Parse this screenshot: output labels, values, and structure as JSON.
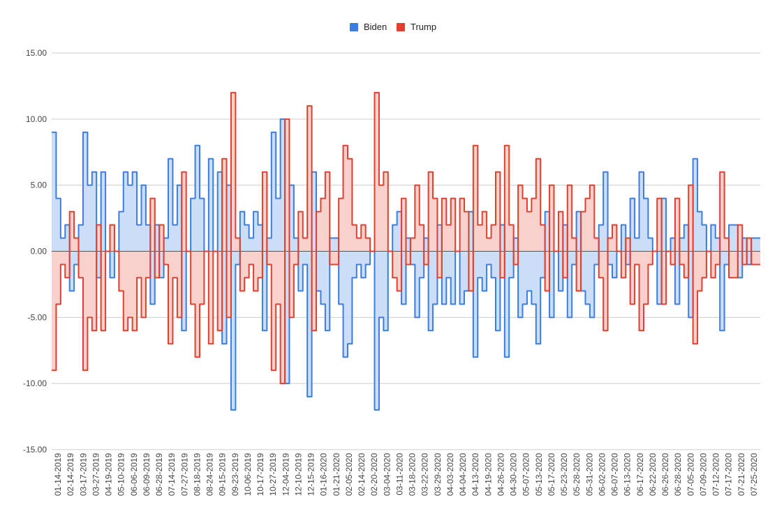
{
  "chart_data": {
    "type": "area",
    "title": "",
    "xlabel": "",
    "ylabel": "",
    "ylim": [
      -15,
      15
    ],
    "y_ticks": [
      "15.00",
      "10.00",
      "5.00",
      "0.00",
      "-5.00",
      "-10.00",
      "-15.00"
    ],
    "y_tick_values": [
      15,
      10,
      5,
      0,
      -5,
      -10,
      -15
    ],
    "grid": true,
    "legend_position": "top",
    "legend": [
      "Biden",
      "Trump"
    ],
    "colors": {
      "biden_line": "#3b7ee0",
      "biden_fill": "#c6d9f6",
      "trump_line": "#e0402f",
      "trump_fill": "#f7cbc6",
      "grid": "#cccccc",
      "zero_line": "#555555"
    },
    "x_tick_labels": [
      "01-14-2019",
      "02-14-2019",
      "03-17-2019",
      "03-27-2019",
      "04-19-2019",
      "05-10-2019",
      "06-06-2019",
      "06-09-2019",
      "06-28-2019",
      "07-14-2019",
      "07-27-2019",
      "08-18-2019",
      "08-24-2019",
      "09-15-2019",
      "09-23-2019",
      "10-06-2019",
      "10-17-2019",
      "10-27-2019",
      "12-04-2019",
      "12-10-2019",
      "12-15-2019",
      "01-16-2020",
      "01-21-2020",
      "02-05-2020",
      "02-14-2020",
      "02-20-2020",
      "03-04-2020",
      "03-11-2020",
      "03-18-2020",
      "03-22-2020",
      "03-29-2020",
      "04-03-2020",
      "04-04-2020",
      "04-13-2020",
      "04-19-2020",
      "04-26-2020",
      "04-30-2020",
      "05-07-2020",
      "05-13-2020",
      "05-17-2020",
      "05-23-2020",
      "05-28-2020",
      "05-31-2020",
      "06-02-2020",
      "06-07-2020",
      "06-13-2020",
      "06-17-2020",
      "06-22-2020",
      "06-26-2020",
      "06-28-2020",
      "07-05-2020",
      "07-09-2020",
      "07-12-2020",
      "07-17-2020",
      "07-21-2020",
      "07-25-2020"
    ],
    "series": [
      {
        "name": "Biden",
        "values": [
          9,
          4,
          1,
          2,
          -3,
          -1,
          2,
          9,
          5,
          6,
          -2,
          6,
          0,
          -2,
          0,
          3,
          6,
          5,
          6,
          2,
          5,
          2,
          -4,
          2,
          -2,
          1,
          7,
          2,
          5,
          -6,
          0,
          4,
          8,
          4,
          0,
          7,
          0,
          6,
          -7,
          5,
          -12,
          -1,
          3,
          2,
          1,
          3,
          2,
          -6,
          1,
          9,
          4,
          10,
          -10,
          5,
          1,
          -3,
          -1,
          -11,
          6,
          -3,
          -4,
          -6,
          1,
          1,
          -4,
          -8,
          -7,
          -2,
          -1,
          -2,
          -1,
          0,
          -12,
          -5,
          -6,
          0,
          2,
          3,
          -4,
          1,
          -1,
          -5,
          -2,
          1,
          -6,
          -4,
          2,
          -4,
          -2,
          -4,
          0,
          -4,
          -3,
          3,
          -8,
          -2,
          -3,
          -1,
          -2,
          -6,
          2,
          -8,
          -2,
          1,
          -5,
          -4,
          -3,
          -4,
          -7,
          -2,
          3,
          -5,
          0,
          -3,
          2,
          -5,
          -1,
          3,
          -3,
          -4,
          -5,
          -1,
          2,
          6,
          -1,
          -2,
          0,
          2,
          -1,
          4,
          1,
          6,
          4,
          1,
          0,
          -4,
          4,
          0,
          1,
          -4,
          1,
          2,
          -5,
          7,
          3,
          2,
          0,
          2,
          1,
          -6,
          -1,
          2,
          2,
          -2,
          1,
          -1,
          1,
          1
        ]
      },
      {
        "name": "Trump",
        "values": [
          -9,
          -4,
          -1,
          -2,
          3,
          1,
          -2,
          -9,
          -5,
          -6,
          2,
          -6,
          0,
          2,
          0,
          -3,
          -6,
          -5,
          -6,
          -2,
          -5,
          -2,
          4,
          -2,
          2,
          -1,
          -7,
          -2,
          -5,
          6,
          0,
          -4,
          -8,
          -4,
          0,
          -7,
          0,
          -6,
          7,
          -5,
          12,
          1,
          -3,
          -2,
          -1,
          -3,
          -2,
          6,
          -1,
          -9,
          -4,
          -10,
          10,
          -5,
          -1,
          3,
          1,
          11,
          -6,
          3,
          4,
          6,
          -1,
          -1,
          4,
          8,
          7,
          2,
          1,
          2,
          1,
          0,
          12,
          5,
          6,
          0,
          -2,
          -3,
          4,
          -1,
          1,
          5,
          2,
          -1,
          6,
          4,
          -2,
          4,
          2,
          4,
          0,
          4,
          3,
          -3,
          8,
          2,
          3,
          1,
          2,
          6,
          -2,
          8,
          2,
          -1,
          5,
          4,
          3,
          4,
          7,
          2,
          -3,
          5,
          0,
          3,
          -2,
          5,
          1,
          -3,
          3,
          4,
          5,
          1,
          -2,
          -6,
          1,
          2,
          0,
          -2,
          1,
          -4,
          -1,
          -6,
          -4,
          -1,
          0,
          4,
          -4,
          0,
          -1,
          4,
          -1,
          -2,
          5,
          -7,
          -3,
          -2,
          0,
          -2,
          -1,
          6,
          1,
          -2,
          -2,
          2,
          -1,
          1,
          -1,
          -1
        ]
      }
    ]
  }
}
